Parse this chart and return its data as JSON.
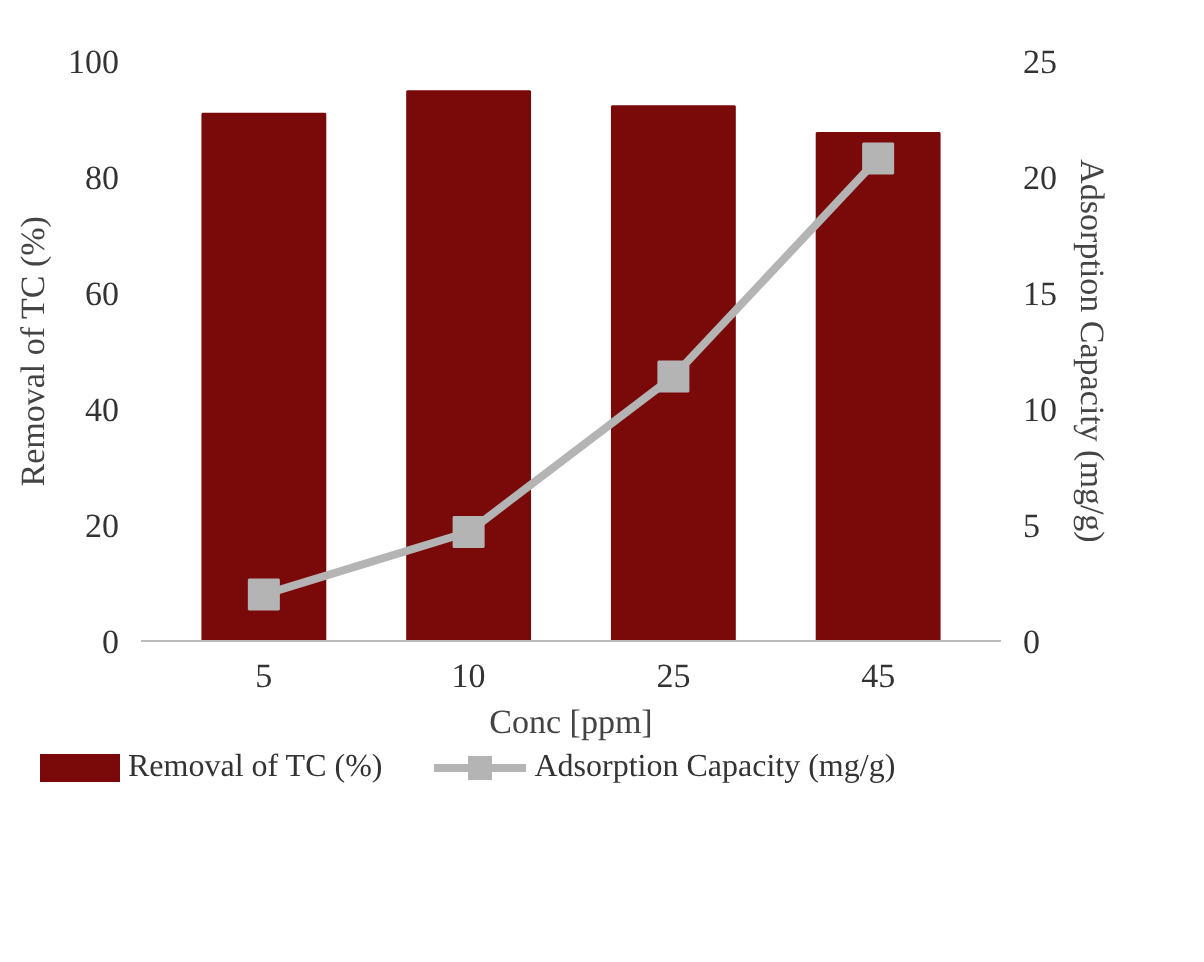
{
  "chart_data": {
    "type": "bar",
    "xlabel": "Conc [ppm]",
    "ylabel": "Removal of TC (%)",
    "y2label": "Adsorption Capacity (mg/g)",
    "categories": [
      "5",
      "10",
      "25",
      "45"
    ],
    "series": [
      {
        "name": "Removal of TC (%)",
        "color": "#7a0a0a",
        "values": [
          90.9,
          94.8,
          92.2,
          87.6
        ]
      },
      {
        "name": "Adsorption Capacity (mg/g)",
        "type": "line",
        "axis": "y2",
        "color": "#b4b4b4",
        "marker": "square",
        "values": [
          2.0,
          4.7,
          11.4,
          20.8
        ]
      }
    ],
    "ylim": [
      0,
      100
    ],
    "yticks": [
      0,
      20,
      40,
      60,
      80,
      100
    ],
    "y2lim": [
      0,
      25
    ],
    "y2ticks": [
      0,
      5,
      10,
      15,
      20,
      25
    ],
    "legend": "bottom",
    "grid": false
  }
}
